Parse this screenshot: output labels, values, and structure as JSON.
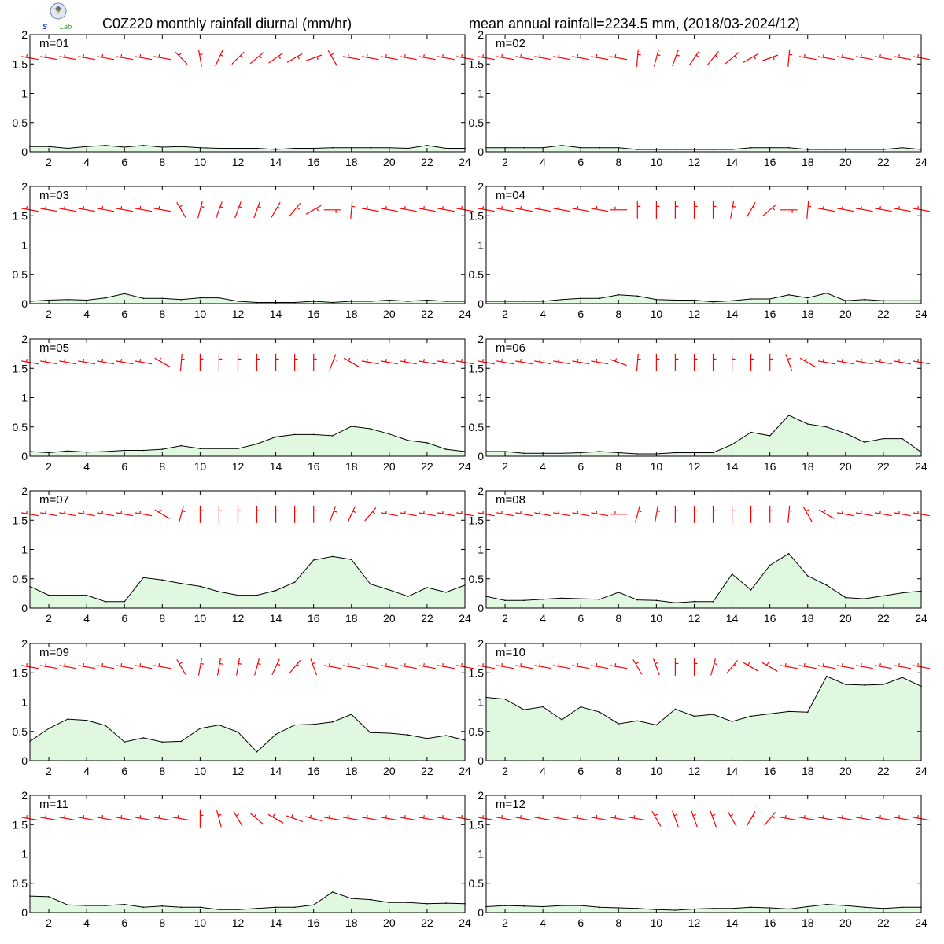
{
  "title_left": "C0Z220 monthly rainfall diurnal (mm/hr)",
  "title_right": "mean annual rainfall=2234.5 mm, (2018/03-2024/12)",
  "logo_text": "Lab",
  "colors": {
    "rain_fill": "#e0f8e0",
    "rain_line": "#000000",
    "wind_barb": "#ff0000",
    "axis": "#000000"
  },
  "chart_data": {
    "type": "area",
    "x": [
      1,
      2,
      3,
      4,
      5,
      6,
      7,
      8,
      9,
      10,
      11,
      12,
      13,
      14,
      15,
      16,
      17,
      18,
      19,
      20,
      21,
      22,
      23,
      24
    ],
    "xlim": [
      1,
      24
    ],
    "ylim": [
      0,
      2
    ],
    "x_ticks": [
      "2",
      "4",
      "6",
      "8",
      "10",
      "12",
      "14",
      "16",
      "18",
      "20",
      "22",
      "24"
    ],
    "y_ticks": [
      "0",
      "0.5",
      "1",
      "1.5",
      "2"
    ],
    "grid": false,
    "wind_barbs": "red wind barbs drawn at y=1.6 for each hour",
    "series": [
      {
        "name": "m=01",
        "values": [
          0.09,
          0.09,
          0.06,
          0.09,
          0.11,
          0.08,
          0.11,
          0.08,
          0.09,
          0.07,
          0.06,
          0.06,
          0.06,
          0.04,
          0.06,
          0.06,
          0.07,
          0.07,
          0.07,
          0.07,
          0.06,
          0.11,
          0.06,
          0.06
        ]
      },
      {
        "name": "m=02",
        "values": [
          0.07,
          0.07,
          0.07,
          0.07,
          0.11,
          0.07,
          0.07,
          0.07,
          0.04,
          0.04,
          0.04,
          0.04,
          0.04,
          0.04,
          0.07,
          0.07,
          0.07,
          0.04,
          0.04,
          0.04,
          0.04,
          0.04,
          0.07,
          0.04
        ]
      },
      {
        "name": "m=03",
        "values": [
          0.04,
          0.06,
          0.07,
          0.06,
          0.1,
          0.17,
          0.09,
          0.09,
          0.07,
          0.1,
          0.1,
          0.04,
          0.02,
          0.02,
          0.02,
          0.04,
          0.02,
          0.04,
          0.04,
          0.06,
          0.04,
          0.06,
          0.04,
          0.04
        ]
      },
      {
        "name": "m=04",
        "values": [
          0.04,
          0.04,
          0.04,
          0.04,
          0.07,
          0.09,
          0.09,
          0.15,
          0.13,
          0.07,
          0.06,
          0.06,
          0.03,
          0.05,
          0.08,
          0.08,
          0.15,
          0.1,
          0.18,
          0.05,
          0.07,
          0.05,
          0.05,
          0.05
        ]
      },
      {
        "name": "m=05",
        "values": [
          0.08,
          0.06,
          0.09,
          0.07,
          0.08,
          0.1,
          0.1,
          0.12,
          0.18,
          0.13,
          0.13,
          0.13,
          0.21,
          0.33,
          0.37,
          0.37,
          0.35,
          0.51,
          0.47,
          0.38,
          0.27,
          0.23,
          0.12,
          0.08
        ]
      },
      {
        "name": "m=06",
        "values": [
          0.08,
          0.08,
          0.05,
          0.05,
          0.05,
          0.06,
          0.08,
          0.06,
          0.04,
          0.04,
          0.06,
          0.06,
          0.06,
          0.2,
          0.41,
          0.35,
          0.7,
          0.55,
          0.5,
          0.39,
          0.24,
          0.3,
          0.3,
          0.07
        ]
      },
      {
        "name": "m=07",
        "values": [
          0.37,
          0.22,
          0.22,
          0.22,
          0.11,
          0.11,
          0.52,
          0.48,
          0.42,
          0.37,
          0.28,
          0.22,
          0.22,
          0.3,
          0.44,
          0.82,
          0.88,
          0.83,
          0.41,
          0.31,
          0.2,
          0.35,
          0.27,
          0.39
        ]
      },
      {
        "name": "m=08",
        "values": [
          0.2,
          0.13,
          0.13,
          0.15,
          0.17,
          0.16,
          0.15,
          0.27,
          0.14,
          0.13,
          0.09,
          0.11,
          0.11,
          0.58,
          0.31,
          0.73,
          0.93,
          0.55,
          0.39,
          0.18,
          0.16,
          0.21,
          0.26,
          0.29
        ]
      },
      {
        "name": "m=09",
        "values": [
          0.33,
          0.55,
          0.71,
          0.69,
          0.6,
          0.32,
          0.39,
          0.32,
          0.33,
          0.55,
          0.61,
          0.49,
          0.15,
          0.45,
          0.61,
          0.62,
          0.66,
          0.79,
          0.48,
          0.47,
          0.44,
          0.38,
          0.43,
          0.35
        ]
      },
      {
        "name": "m=10",
        "values": [
          1.08,
          1.05,
          0.87,
          0.92,
          0.7,
          0.92,
          0.83,
          0.63,
          0.68,
          0.61,
          0.88,
          0.76,
          0.79,
          0.67,
          0.76,
          0.8,
          0.84,
          0.83,
          1.44,
          1.3,
          1.29,
          1.3,
          1.42,
          1.27
        ]
      },
      {
        "name": "m=11",
        "values": [
          0.28,
          0.27,
          0.13,
          0.12,
          0.12,
          0.14,
          0.09,
          0.11,
          0.09,
          0.09,
          0.05,
          0.05,
          0.07,
          0.09,
          0.09,
          0.13,
          0.35,
          0.24,
          0.22,
          0.17,
          0.17,
          0.15,
          0.16,
          0.15
        ]
      },
      {
        "name": "m=12",
        "values": [
          0.1,
          0.12,
          0.11,
          0.1,
          0.12,
          0.12,
          0.09,
          0.08,
          0.07,
          0.05,
          0.04,
          0.06,
          0.07,
          0.07,
          0.09,
          0.08,
          0.06,
          0.1,
          0.14,
          0.12,
          0.09,
          0.07,
          0.09,
          0.09
        ]
      }
    ]
  }
}
